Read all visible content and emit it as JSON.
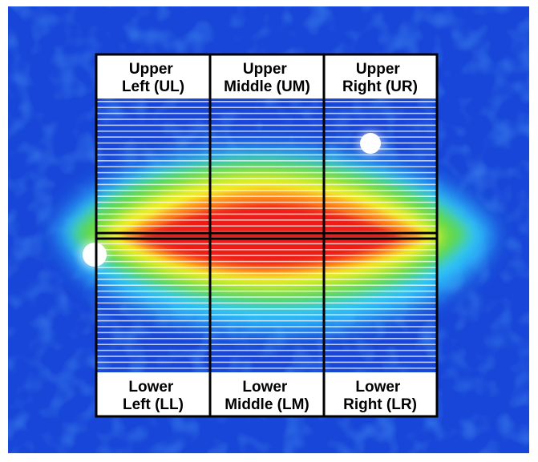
{
  "regions": [
    {
      "id": "ul",
      "line1": "Upper",
      "line2": "Left (UL)"
    },
    {
      "id": "um",
      "line1": "Upper",
      "line2": "Middle (UM)"
    },
    {
      "id": "ur",
      "line1": "Upper",
      "line2": "Right (UR)"
    },
    {
      "id": "ll",
      "line1": "Lower",
      "line2": "Left (LL)"
    },
    {
      "id": "lm",
      "line1": "Lower",
      "line2": "Middle (LM)"
    },
    {
      "id": "lr",
      "line1": "Lower",
      "line2": "Right (LR)"
    }
  ],
  "colors": {
    "background": "#1846d8",
    "background_dark": "#0a2bb0",
    "cyan": "#2ec8ff",
    "green": "#5fd94a",
    "yellow": "#f5f022",
    "orange": "#ff8a1a",
    "red": "#ee1c14",
    "grid_line": "#000000",
    "label_panel": "#ffffff",
    "stripe": "#ffffff"
  }
}
